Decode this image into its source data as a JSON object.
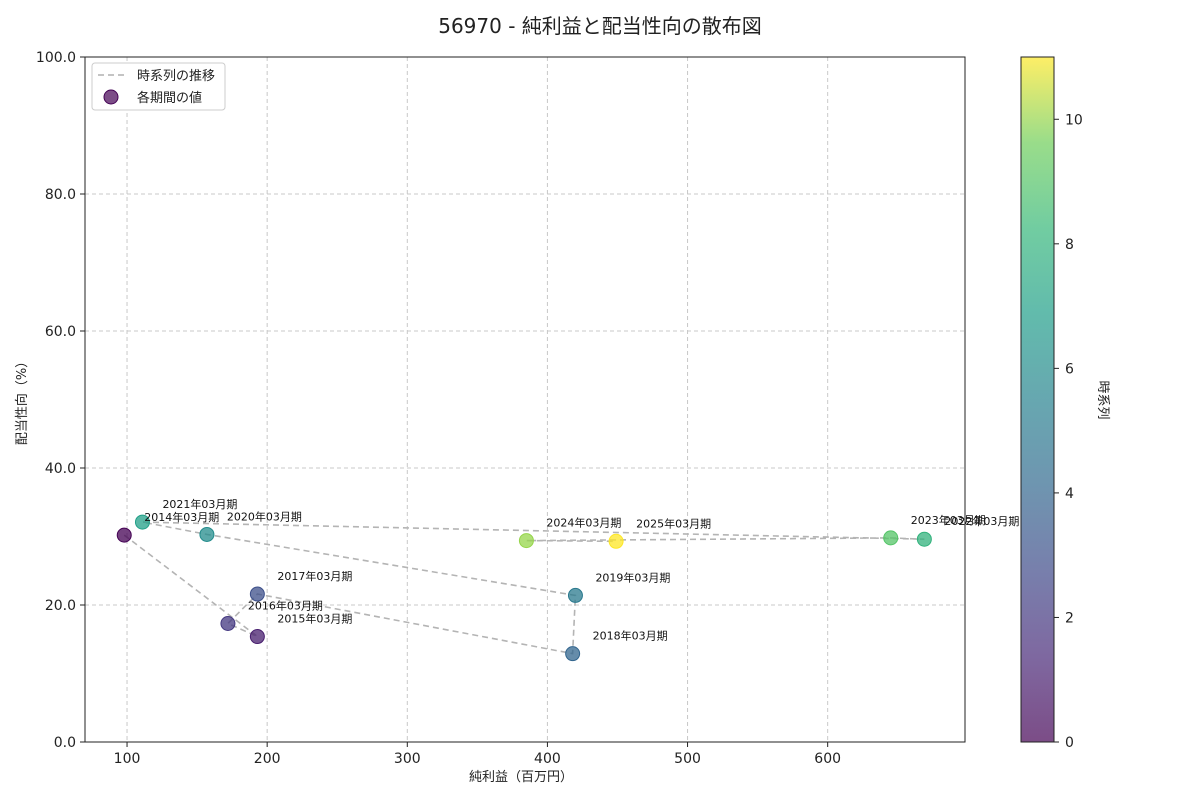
{
  "chart_data": {
    "type": "scatter",
    "title": "56970 - 純利益と配当性向の散布図",
    "xlabel": "純利益（百万円）",
    "ylabel": "配当性向（%）",
    "xlim": [
      70,
      698
    ],
    "ylim": [
      0,
      100
    ],
    "xticks": [
      100,
      200,
      300,
      400,
      500,
      600
    ],
    "yticks": [
      0,
      20,
      40,
      60,
      80,
      100
    ],
    "ytick_labels": [
      "0.0",
      "20.0",
      "40.0",
      "60.0",
      "80.0",
      "100.0"
    ],
    "grid": true,
    "legend": {
      "position": "top-left",
      "line_label": "時系列の推移",
      "scatter_label": "各期間の値"
    },
    "colorbar": {
      "label": "時系列",
      "range": [
        0,
        11
      ],
      "ticks": [
        0,
        2,
        4,
        6,
        8,
        10
      ]
    },
    "points": [
      {
        "label": "2014年03月期",
        "x": 98,
        "y": 30.2,
        "t": 0
      },
      {
        "label": "2015年03月期",
        "x": 193,
        "y": 15.4,
        "t": 1
      },
      {
        "label": "2016年03月期",
        "x": 172,
        "y": 17.3,
        "t": 2
      },
      {
        "label": "2017年03月期",
        "x": 193,
        "y": 21.6,
        "t": 3
      },
      {
        "label": "2018年03月期",
        "x": 418,
        "y": 12.9,
        "t": 4
      },
      {
        "label": "2019年03月期",
        "x": 420,
        "y": 21.4,
        "t": 5
      },
      {
        "label": "2020年03月期",
        "x": 157,
        "y": 30.3,
        "t": 6
      },
      {
        "label": "2021年03月期",
        "x": 111,
        "y": 32.1,
        "t": 7
      },
      {
        "label": "2022年03月期",
        "x": 669,
        "y": 29.6,
        "t": 8
      },
      {
        "label": "2023年03月期",
        "x": 645,
        "y": 29.8,
        "t": 9
      },
      {
        "label": "2024年03月期",
        "x": 385,
        "y": 29.4,
        "t": 10
      },
      {
        "label": "2025年03月期",
        "x": 449,
        "y": 29.3,
        "t": 11
      }
    ]
  }
}
